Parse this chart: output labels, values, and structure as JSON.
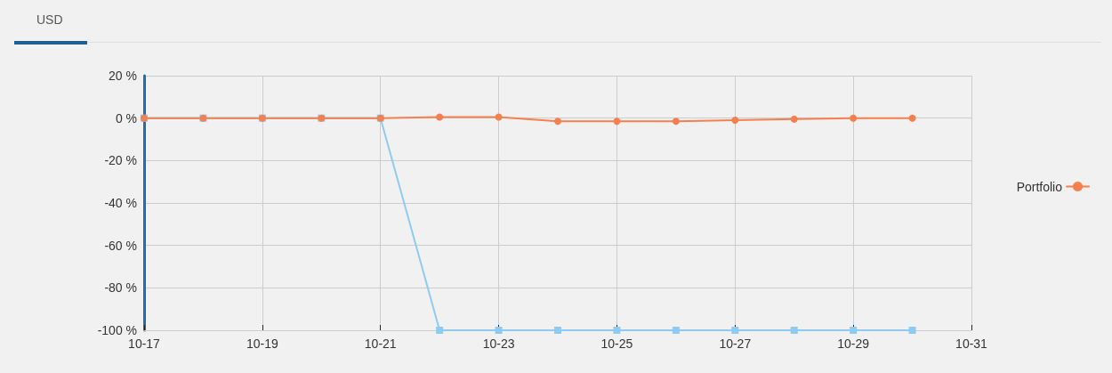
{
  "chart_data": {
    "type": "line",
    "title": "USD",
    "x": [
      "--10-17",
      "--10-18",
      "--10-19",
      "--10-20",
      "--10-21",
      "--10-22",
      "--10-23",
      "--10-24",
      "--10-25",
      "--10-26",
      "--10-27",
      "--10-28",
      "--10-29",
      "--10-30"
    ],
    "series": [
      {
        "name": "Portfolio",
        "color": "#f4804f",
        "marker": "circle",
        "values": [
          0,
          0,
          0,
          0,
          0,
          0.5,
          0.5,
          -1.5,
          -1.5,
          -1.5,
          -1,
          -0.5,
          0,
          0
        ]
      },
      {
        "color": "#8fcbf0",
        "marker": "square",
        "values": [
          0,
          0,
          0,
          0,
          0,
          -100,
          -100,
          -100,
          -100,
          -100,
          -100,
          -100,
          -100,
          -100
        ]
      }
    ],
    "xlim": [
      "--10-17",
      "--10-31"
    ],
    "xticks": [
      {
        "value": "--10-17",
        "label": "10-17"
      },
      {
        "value": "--10-19",
        "label": "10-19"
      },
      {
        "value": "--10-21",
        "label": "10-21"
      },
      {
        "value": "--10-23",
        "label": "10-23"
      },
      {
        "value": "--10-25",
        "label": "10-25"
      },
      {
        "value": "--10-27",
        "label": "10-27"
      },
      {
        "value": "--10-29",
        "label": "10-29"
      },
      {
        "value": "--10-31",
        "label": "10-31"
      }
    ],
    "ylim": [
      -100,
      20
    ],
    "yticks": [
      {
        "value": -100,
        "label": "-100 %"
      },
      {
        "value": -80,
        "label": "-80 %"
      },
      {
        "value": -60,
        "label": "-60 %"
      },
      {
        "value": -40,
        "label": "-40 %"
      },
      {
        "value": -20,
        "label": "-20 %"
      },
      {
        "value": 0,
        "label": "0 %"
      },
      {
        "value": 20,
        "label": "20 %"
      }
    ],
    "grid": true,
    "legend": "right"
  }
}
